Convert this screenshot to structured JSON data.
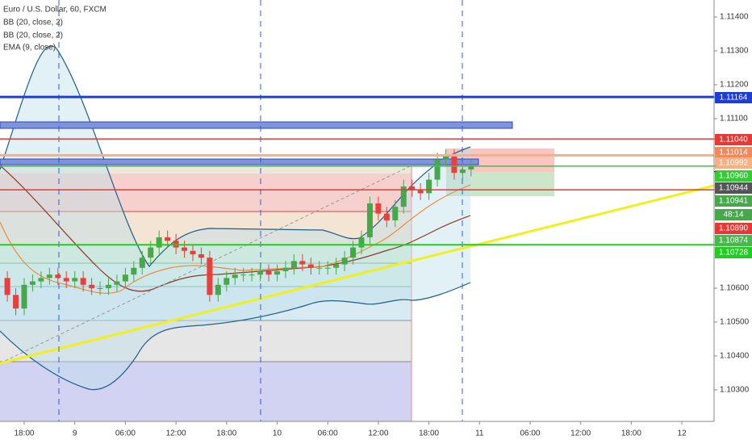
{
  "chart_data": {
    "type": "candlestick",
    "title": "Euro / U.S. Dollar, 60, FXCM",
    "indicators": [
      "BB (20, close, 2)",
      "BB (20, close, 2)",
      "EMA (9, close)"
    ],
    "up_color": "#47a84b",
    "down_color": "#e8403c",
    "grid": false,
    "xlim": [
      -2.87,
      81.82
    ],
    "ylim": [
      1.10207,
      1.1145
    ],
    "xticks": [
      {
        "value": 0,
        "label": "18:00"
      },
      {
        "value": 6,
        "label": "9"
      },
      {
        "value": 12,
        "label": "06:00"
      },
      {
        "value": 18,
        "label": "12:00"
      },
      {
        "value": 24,
        "label": "18:00"
      },
      {
        "value": 30,
        "label": "10"
      },
      {
        "value": 36,
        "label": "06:00"
      },
      {
        "value": 42,
        "label": "12:00"
      },
      {
        "value": 48,
        "label": "18:00"
      },
      {
        "value": 54,
        "label": "11"
      },
      {
        "value": 60,
        "label": "06:00"
      },
      {
        "value": 66,
        "label": "12:00"
      },
      {
        "value": 72,
        "label": "18:00"
      },
      {
        "value": 78,
        "label": "12"
      }
    ],
    "yticks": [
      {
        "value": 1.114,
        "label": "1.11400"
      },
      {
        "value": 1.113,
        "label": "1.11300"
      },
      {
        "value": 1.112,
        "label": "1.11200"
      },
      {
        "value": 1.111,
        "label": "1.11100"
      },
      {
        "value": 1.106,
        "label": "1.10600"
      },
      {
        "value": 1.105,
        "label": "1.10500"
      },
      {
        "value": 1.104,
        "label": "1.10400"
      },
      {
        "value": 1.103,
        "label": "1.10300"
      }
    ],
    "x": [
      -2,
      -1,
      0,
      1,
      2,
      3,
      4,
      5,
      6,
      7,
      8,
      9,
      10,
      11,
      12,
      13,
      14,
      15,
      16,
      17,
      18,
      19,
      20,
      21,
      22,
      23,
      24,
      25,
      26,
      27,
      28,
      29,
      30,
      31,
      32,
      33,
      34,
      35,
      36,
      37,
      38,
      39,
      40,
      41,
      42,
      43,
      44,
      45,
      46,
      47,
      48,
      49,
      50,
      51,
      52,
      53
    ],
    "open": [
      1.1063,
      1.1058,
      1.1054,
      1.1061,
      1.1062,
      1.1063,
      1.1064,
      1.1063,
      1.1062,
      1.1063,
      1.1061,
      1.106,
      1.106,
      1.1061,
      1.1062,
      1.1064,
      1.1066,
      1.1069,
      1.1072,
      1.1075,
      1.1074,
      1.1072,
      1.1071,
      1.107,
      1.1069,
      1.1058,
      1.1061,
      1.1063,
      1.1064,
      1.1064,
      1.1064,
      1.1065,
      1.1064,
      1.1065,
      1.1066,
      1.1068,
      1.1067,
      1.1066,
      1.1066,
      1.1066,
      1.1067,
      1.1069,
      1.1072,
      1.1075,
      1.1085,
      1.1082,
      1.108,
      1.1084,
      1.109,
      1.1089,
      1.1088,
      1.1092,
      1.1098,
      1.1099,
      1.1094,
      1.1095
    ],
    "high": [
      1.1065,
      1.106,
      1.1063,
      1.1064,
      1.1065,
      1.1066,
      1.1066,
      1.1065,
      1.1065,
      1.1065,
      1.1063,
      1.1062,
      1.1063,
      1.1064,
      1.1066,
      1.1068,
      1.1071,
      1.1074,
      1.1077,
      1.1077,
      1.1076,
      1.1074,
      1.1073,
      1.1072,
      1.1071,
      1.1063,
      1.1065,
      1.1066,
      1.1066,
      1.1066,
      1.1067,
      1.1067,
      1.1067,
      1.1068,
      1.107,
      1.107,
      1.1069,
      1.1068,
      1.1068,
      1.1069,
      1.1071,
      1.1074,
      1.1077,
      1.1087,
      1.1087,
      1.1084,
      1.1086,
      1.1092,
      1.1092,
      1.1091,
      1.1094,
      1.11,
      1.1101,
      1.1101,
      1.1097,
      1.1098
    ],
    "low": [
      1.1056,
      1.1052,
      1.1052,
      1.1059,
      1.106,
      1.1061,
      1.1061,
      1.106,
      1.106,
      1.1059,
      1.1058,
      1.1058,
      1.1058,
      1.1059,
      1.106,
      1.1062,
      1.1064,
      1.1067,
      1.107,
      1.1072,
      1.107,
      1.1069,
      1.1068,
      1.1067,
      1.1056,
      1.1056,
      1.1059,
      1.1061,
      1.1062,
      1.1062,
      1.1062,
      1.1062,
      1.1062,
      1.1063,
      1.1064,
      1.1065,
      1.1064,
      1.1064,
      1.1064,
      1.1064,
      1.1065,
      1.1067,
      1.107,
      1.1073,
      1.108,
      1.1078,
      1.1078,
      1.1082,
      1.1087,
      1.1086,
      1.1086,
      1.109,
      1.1096,
      1.1092,
      1.1092,
      1.1093
    ],
    "close": [
      1.1058,
      1.1054,
      1.1061,
      1.1062,
      1.1063,
      1.1064,
      1.1063,
      1.1062,
      1.1063,
      1.1061,
      1.106,
      1.106,
      1.1061,
      1.1062,
      1.1064,
      1.1066,
      1.1069,
      1.1072,
      1.1075,
      1.1074,
      1.1072,
      1.1071,
      1.107,
      1.1069,
      1.1058,
      1.1061,
      1.1063,
      1.1064,
      1.1064,
      1.1064,
      1.1065,
      1.1064,
      1.1065,
      1.1066,
      1.1068,
      1.1067,
      1.1066,
      1.1066,
      1.1066,
      1.1067,
      1.1069,
      1.1072,
      1.1075,
      1.1085,
      1.1082,
      1.108,
      1.1084,
      1.109,
      1.1089,
      1.1088,
      1.1092,
      1.1098,
      1.1099,
      1.1094,
      1.1095,
      1.1096
    ],
    "price_labels": [
      {
        "value": 1.11164,
        "label": "1.11164",
        "color": "#1c3ed8",
        "line": true,
        "line_width": 3
      },
      {
        "value": 1.1104,
        "label": "1.11040",
        "color": "#e53935",
        "line": true,
        "line_width": 1.5
      },
      {
        "value": 1.11014,
        "label": "1.11014",
        "color": "#f08a5d",
        "line": false
      },
      {
        "value": 1.10992,
        "label": "1.10992",
        "color": "#f4b183",
        "line": true,
        "line_width": 3
      },
      {
        "value": 1.1096,
        "label": "1.10960",
        "color": "#33cc33",
        "line": true,
        "line_width": 1.5
      },
      {
        "value": 1.10944,
        "label": "1.10944",
        "color": "#555555",
        "line": false
      },
      {
        "value": 1.10941,
        "label": "1.10941",
        "color": "#47a84b",
        "line": false
      },
      {
        "label": "48:14",
        "color": "#47a84b"
      },
      {
        "value": 1.1089,
        "label": "1.10890",
        "color": "#e53935",
        "line": true,
        "line_width": 1.5
      },
      {
        "value": 1.10874,
        "label": "1.10874",
        "color": "#49b84c",
        "line": false
      },
      {
        "value": 1.10728,
        "label": "1.10728",
        "color": "#22cc22",
        "line": true,
        "line_width": 2
      }
    ]
  }
}
